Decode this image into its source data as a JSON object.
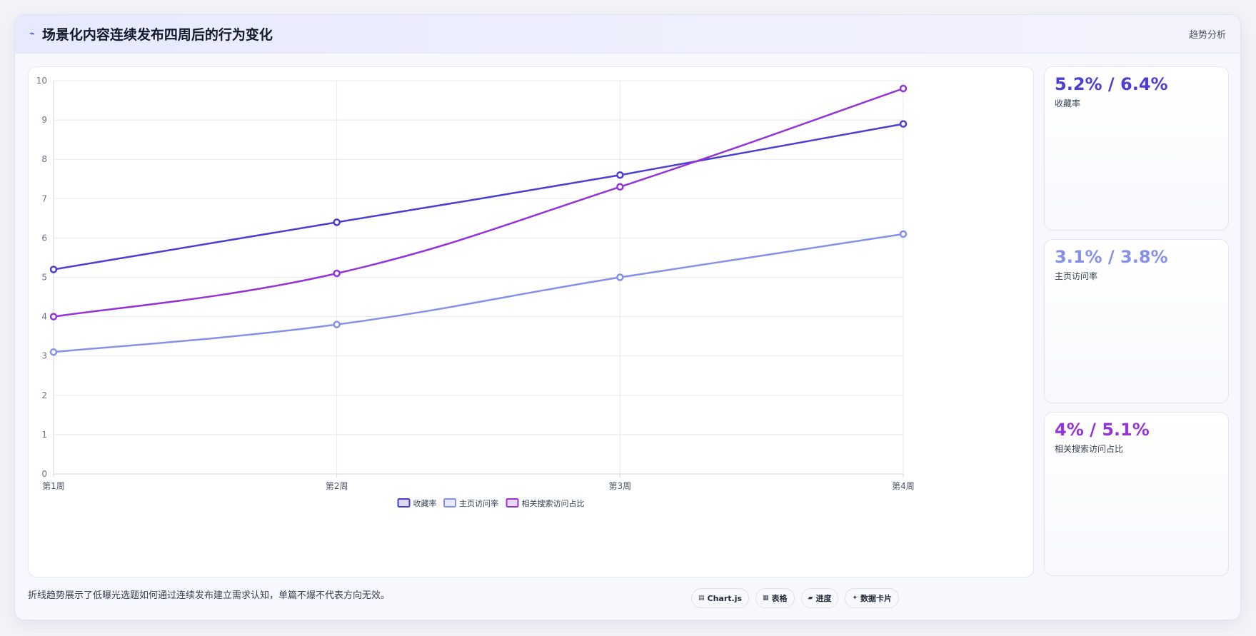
{
  "header": {
    "title": "场景化内容连续发布四周后的行为变化",
    "title_icon": "trend-line-icon",
    "tag": "趋势分析"
  },
  "chart_data": {
    "type": "line",
    "categories": [
      "第1周",
      "第2周",
      "第3周",
      "第4周"
    ],
    "ylim": [
      0,
      10
    ],
    "yticks": [
      0,
      1,
      2,
      3,
      4,
      5,
      6,
      7,
      8,
      9,
      10
    ],
    "grid": true,
    "legend_position": "bottom",
    "series": [
      {
        "name": "收藏率",
        "values": [
          5.2,
          6.4,
          7.6,
          8.9
        ],
        "color": "#4a3fd0"
      },
      {
        "name": "主页访问率",
        "values": [
          3.1,
          3.8,
          5.0,
          6.1
        ],
        "color": "#8590e6"
      },
      {
        "name": "相关搜索访问占比",
        "values": [
          4.0,
          5.1,
          7.3,
          9.8
        ],
        "color": "#9434d6"
      }
    ]
  },
  "stats": [
    {
      "value": "5.2% / 6.4%",
      "label": "收藏率",
      "color": "#4a3fd0"
    },
    {
      "value": "3.1% / 3.8%",
      "label": "主页访问率",
      "color": "#8590e6"
    },
    {
      "value": "4% / 5.1%",
      "label": "相关搜索访问占比",
      "color": "#9434d6"
    }
  ],
  "caption": "折线趋势展示了低曝光选题如何通过连续发布建立需求认知，单篇不爆不代表方向无效。",
  "tags": [
    {
      "label": "Chart.js",
      "icon": "chart-icon",
      "glyph": "▤"
    },
    {
      "label": "表格",
      "icon": "table-icon",
      "glyph": "▦"
    },
    {
      "label": "进度",
      "icon": "progress-icon",
      "glyph": "▰"
    },
    {
      "label": "数据卡片",
      "icon": "card-icon",
      "glyph": "✦"
    }
  ]
}
